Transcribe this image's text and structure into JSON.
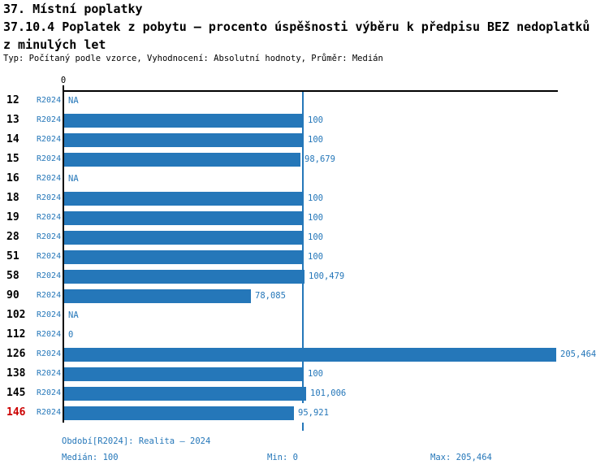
{
  "header": {
    "line1": "37. Místní poplatky",
    "line2": "37.10.4 Poplatek z pobytu – procento úspěšnosti výběru k předpisu BEZ nedoplatků",
    "line3": "z minulých let",
    "meta": "Typ: Počítaný podle vzorce, Vyhodnocení: Absolutní hodnoty, Průměr: Medián"
  },
  "chart_data": {
    "type": "bar",
    "orientation": "horizontal",
    "title": "37.10.4 Poplatek z pobytu – procento úspěšnosti výběru k předpisu BEZ nedoplatků z minulých let",
    "categories": [
      "12",
      "13",
      "14",
      "15",
      "16",
      "18",
      "19",
      "28",
      "51",
      "58",
      "90",
      "102",
      "112",
      "126",
      "138",
      "145",
      "146"
    ],
    "series": [
      {
        "name": "R2024",
        "values": [
          null,
          100,
          100,
          98.679,
          null,
          100,
          100,
          100,
          100,
          100.479,
          78.085,
          null,
          0,
          205.464,
          100,
          101.006,
          95.921
        ],
        "display_values": [
          "NA",
          "100",
          "100",
          "98,679",
          "NA",
          "100",
          "100",
          "100",
          "100",
          "100,479",
          "78,085",
          "NA",
          "0",
          "205,464",
          "100",
          "101,006",
          "95,921"
        ]
      }
    ],
    "highlighted_category": "146",
    "median": 100,
    "min": 0,
    "max": 205.464,
    "axis": {
      "zero_label": "0",
      "xlim": [
        0,
        207
      ],
      "median_gridline": true
    }
  },
  "footer": {
    "period_line": "Období[R2024]: Realita – 2024",
    "median_label": "Medián: 100",
    "min_label": "Min: 0",
    "max_label": "Max: 205,464"
  },
  "colors": {
    "bar": "#2577b9",
    "text_blue": "#2577b9",
    "highlight_red": "#cc0000",
    "axis_black": "#000000"
  }
}
